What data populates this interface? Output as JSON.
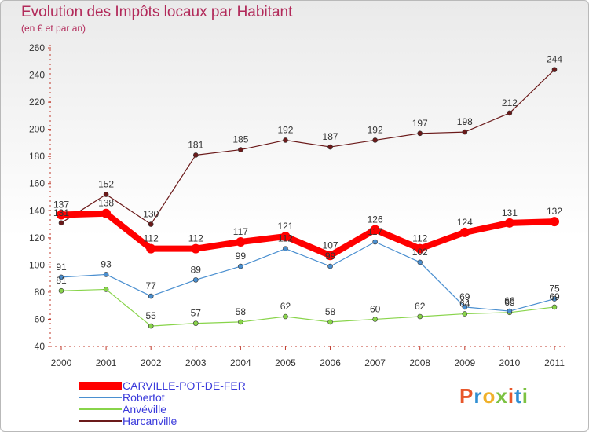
{
  "header": {
    "title": "Evolution des Impôts locaux par Habitant",
    "subtitle": "(en € et par an)"
  },
  "brand": {
    "text": "Proxiti",
    "colors": [
      "#e8572a",
      "#2f8fd3",
      "#f0b12a",
      "#7cc242",
      "#e8572a",
      "#2f8fd3",
      "#7cc242"
    ]
  },
  "chart_data": {
    "type": "line",
    "x": [
      "2000",
      "2001",
      "2002",
      "2003",
      "2004",
      "2005",
      "2006",
      "2007",
      "2008",
      "2009",
      "2010",
      "2011"
    ],
    "ylim": [
      40,
      260
    ],
    "yticks": [
      40,
      60,
      80,
      100,
      120,
      140,
      160,
      180,
      200,
      220,
      240,
      260
    ],
    "grid": false,
    "legend_position": "bottom-left",
    "series": [
      {
        "name": "Harcanville",
        "color": "#6b1a1a",
        "width": 1.2,
        "values": [
          131,
          152,
          130,
          181,
          185,
          192,
          187,
          192,
          197,
          198,
          212,
          244
        ],
        "labels": [
          "131",
          "152",
          "130",
          "181",
          "185",
          "192",
          "187",
          "192",
          "197",
          "198",
          "212",
          "244"
        ]
      },
      {
        "name": "Anvéville",
        "color": "#88d44a",
        "width": 1.2,
        "values": [
          81,
          82,
          55,
          57,
          58,
          62,
          58,
          60,
          62,
          64,
          65,
          69
        ],
        "labels": [
          "81",
          "",
          "55",
          "57",
          "58",
          "62",
          "58",
          "60",
          "62",
          "64",
          "65",
          "69"
        ]
      },
      {
        "name": "Robertot",
        "color": "#4a8fd0",
        "width": 1.2,
        "values": [
          91,
          93,
          77,
          89,
          99,
          112,
          99,
          117,
          102,
          69,
          66,
          75
        ],
        "labels": [
          "91",
          "93",
          "77",
          "89",
          "99",
          "112",
          "99",
          "117",
          "102",
          "69",
          "66",
          "75"
        ]
      },
      {
        "name": "CARVILLE-POT-DE-FER",
        "color": "#ff0000",
        "width": 8,
        "values": [
          137,
          138,
          112,
          112,
          117,
          121,
          107,
          126,
          112,
          124,
          131,
          132
        ],
        "labels": [
          "137",
          "138",
          "112",
          "112",
          "117",
          "121",
          "107",
          "126",
          "112",
          "124",
          "131",
          "132"
        ]
      }
    ],
    "legend": [
      "CARVILLE-POT-DE-FER",
      "Robertot",
      "Anvéville",
      "Harcanville"
    ]
  }
}
